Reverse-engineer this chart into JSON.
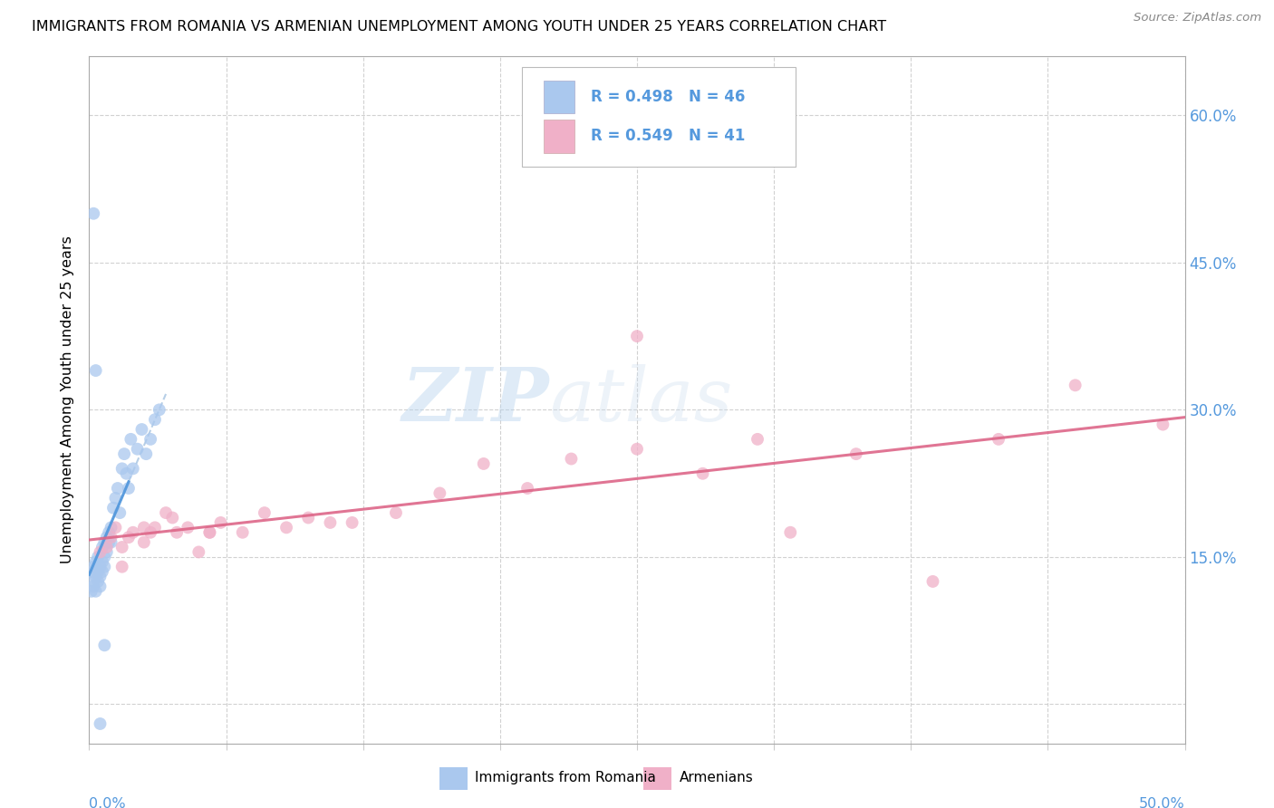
{
  "title": "IMMIGRANTS FROM ROMANIA VS ARMENIAN UNEMPLOYMENT AMONG YOUTH UNDER 25 YEARS CORRELATION CHART",
  "source": "Source: ZipAtlas.com",
  "ylabel": "Unemployment Among Youth under 25 years",
  "right_yticks": [
    "15.0%",
    "30.0%",
    "45.0%",
    "60.0%"
  ],
  "right_ytick_vals": [
    0.15,
    0.3,
    0.45,
    0.6
  ],
  "legend_label1": "Immigrants from Romania",
  "legend_label2": "Armenians",
  "legend_R1": "R = 0.498",
  "legend_N1": "N = 46",
  "legend_R2": "R = 0.549",
  "legend_N2": "N = 41",
  "watermark_zip": "ZIP",
  "watermark_atlas": "atlas",
  "color_blue": "#aac8ee",
  "color_pink": "#f0b0c8",
  "color_blue_dark": "#5599dd",
  "color_pink_dark": "#dd6688",
  "color_blue_text": "#5599dd",
  "xlim": [
    0.0,
    0.5
  ],
  "ylim": [
    -0.04,
    0.66
  ],
  "romania_x": [
    0.001,
    0.001,
    0.002,
    0.002,
    0.002,
    0.003,
    0.003,
    0.003,
    0.004,
    0.004,
    0.004,
    0.005,
    0.005,
    0.005,
    0.006,
    0.006,
    0.006,
    0.007,
    0.007,
    0.007,
    0.008,
    0.008,
    0.009,
    0.009,
    0.01,
    0.01,
    0.011,
    0.012,
    0.013,
    0.014,
    0.015,
    0.016,
    0.017,
    0.018,
    0.019,
    0.02,
    0.022,
    0.024,
    0.026,
    0.028,
    0.03,
    0.032,
    0.002,
    0.003,
    0.005,
    0.007
  ],
  "romania_y": [
    0.135,
    0.115,
    0.125,
    0.14,
    0.12,
    0.13,
    0.145,
    0.115,
    0.135,
    0.15,
    0.125,
    0.12,
    0.14,
    0.13,
    0.145,
    0.16,
    0.135,
    0.15,
    0.14,
    0.165,
    0.155,
    0.17,
    0.165,
    0.175,
    0.18,
    0.165,
    0.2,
    0.21,
    0.22,
    0.195,
    0.24,
    0.255,
    0.235,
    0.22,
    0.27,
    0.24,
    0.26,
    0.28,
    0.255,
    0.27,
    0.29,
    0.3,
    0.5,
    0.34,
    -0.02,
    0.06
  ],
  "armenian_x": [
    0.005,
    0.008,
    0.01,
    0.012,
    0.015,
    0.018,
    0.02,
    0.025,
    0.028,
    0.03,
    0.035,
    0.04,
    0.045,
    0.05,
    0.055,
    0.06,
    0.07,
    0.08,
    0.09,
    0.1,
    0.11,
    0.12,
    0.14,
    0.16,
    0.18,
    0.2,
    0.22,
    0.25,
    0.28,
    0.305,
    0.32,
    0.35,
    0.385,
    0.415,
    0.45,
    0.49,
    0.015,
    0.025,
    0.038,
    0.055,
    0.25
  ],
  "armenian_y": [
    0.155,
    0.16,
    0.17,
    0.18,
    0.16,
    0.17,
    0.175,
    0.165,
    0.175,
    0.18,
    0.195,
    0.175,
    0.18,
    0.155,
    0.175,
    0.185,
    0.175,
    0.195,
    0.18,
    0.19,
    0.185,
    0.185,
    0.195,
    0.215,
    0.245,
    0.22,
    0.25,
    0.26,
    0.235,
    0.27,
    0.175,
    0.255,
    0.125,
    0.27,
    0.325,
    0.285,
    0.14,
    0.18,
    0.19,
    0.175,
    0.375
  ]
}
